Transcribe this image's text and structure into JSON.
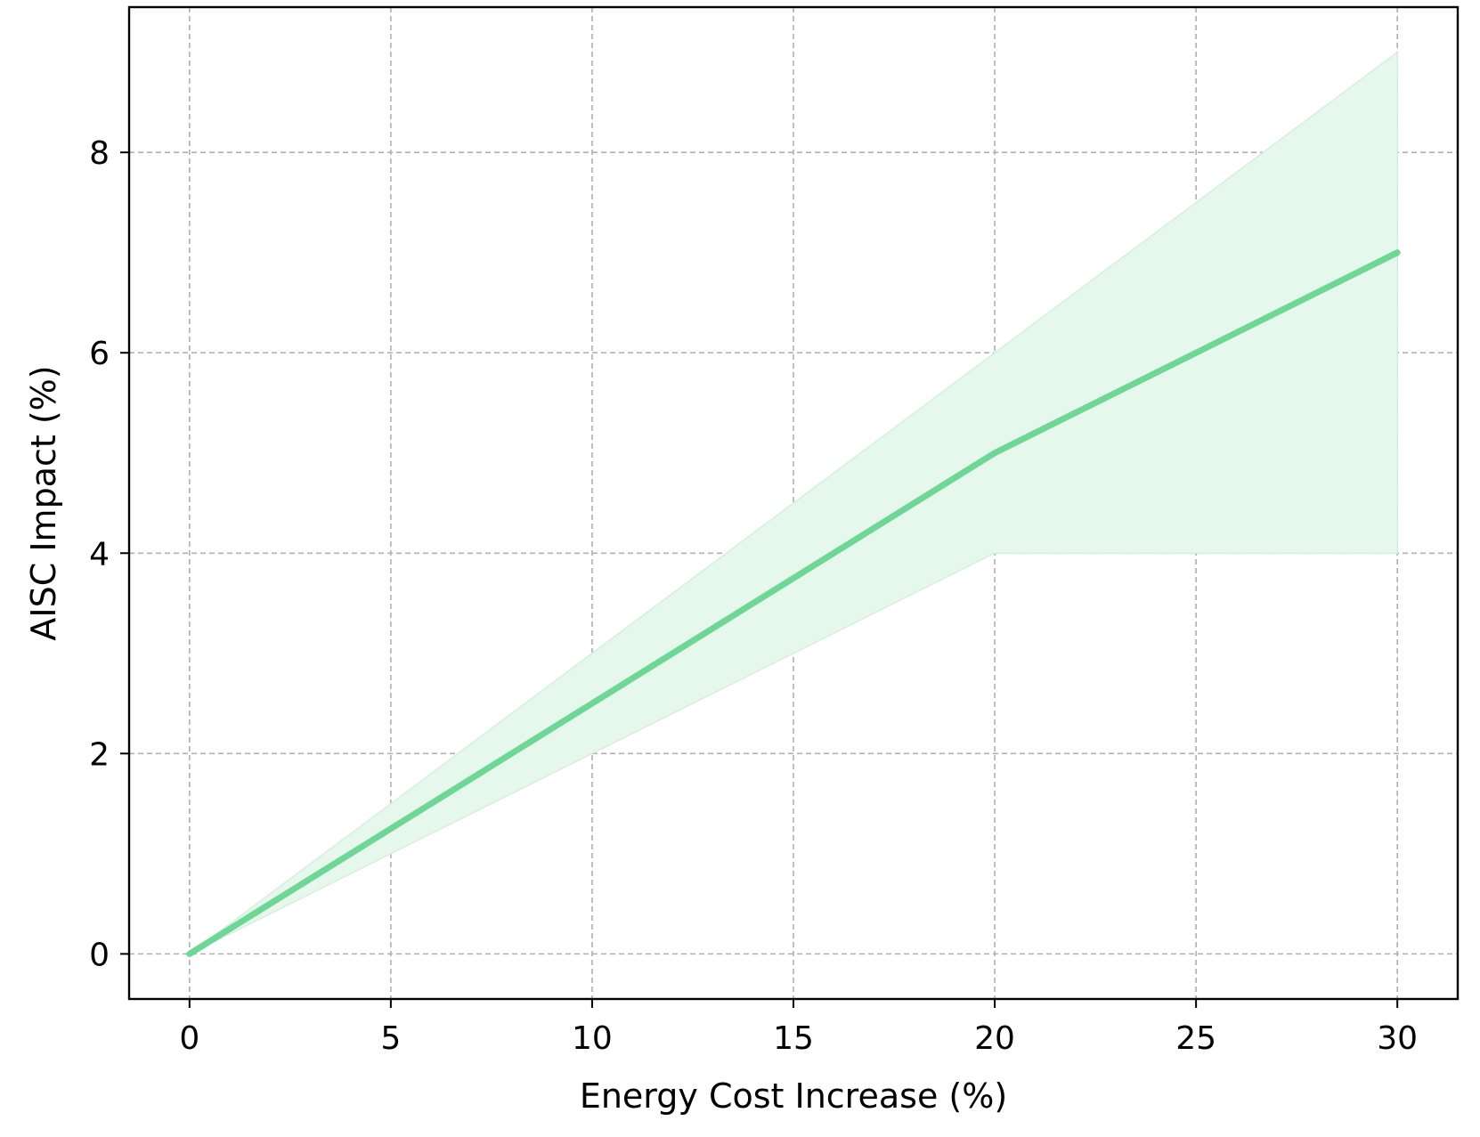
{
  "chart_data": {
    "type": "line",
    "title": "",
    "xlabel": "Energy Cost Increase (%)",
    "ylabel": "AISC Impact (%)",
    "x": [
      0,
      5,
      10,
      15,
      20,
      25,
      30
    ],
    "series": [
      {
        "values": [
          0,
          1.25,
          2.5,
          3.75,
          5,
          6,
          7
        ],
        "color": "#6fd796",
        "band_lower": [
          0,
          1,
          2,
          3,
          4,
          4,
          4
        ],
        "band_upper": [
          0,
          1.5,
          3,
          4.5,
          6,
          7.5,
          9
        ],
        "band_color": "#e6f7ec"
      }
    ],
    "xlim": [
      -1.5,
      31.5
    ],
    "ylim": [
      -0.45,
      9.45
    ],
    "xticks": [
      0,
      5,
      10,
      15,
      20,
      25,
      30
    ],
    "xtick_labels": [
      "0",
      "5",
      "10",
      "15",
      "20",
      "25",
      "30"
    ],
    "yticks": [
      0,
      2,
      4,
      6,
      8
    ],
    "ytick_labels": [
      "0",
      "2",
      "4",
      "6",
      "8"
    ],
    "grid": true,
    "grid_style": "dashed"
  }
}
